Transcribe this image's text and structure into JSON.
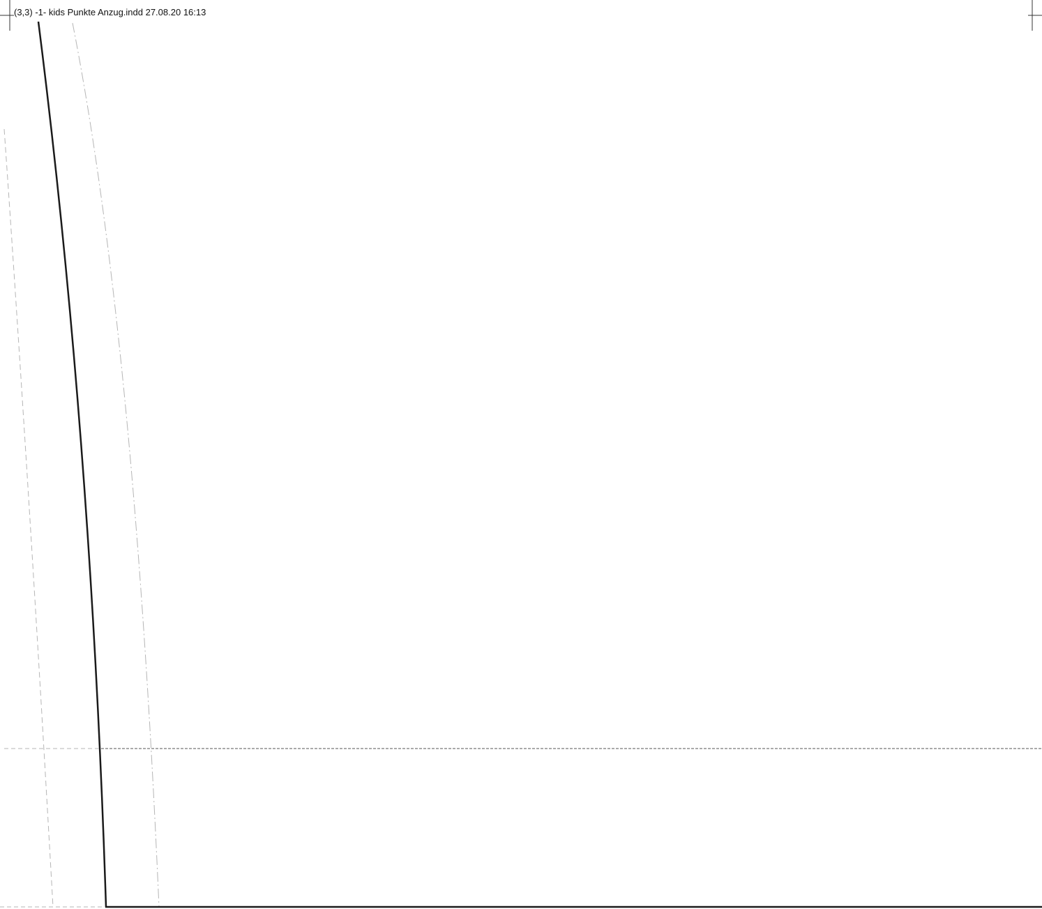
{
  "document": {
    "slug_text": "(3,3)  -1- kids Punkte Anzug.indd 27.08.20 16:13"
  },
  "colors": {
    "background": "#ffffff",
    "cut_line": "#1a1a1a",
    "guide_line": "#b5b5b5",
    "grainline": "#777777",
    "registration_mark": "#333333"
  }
}
